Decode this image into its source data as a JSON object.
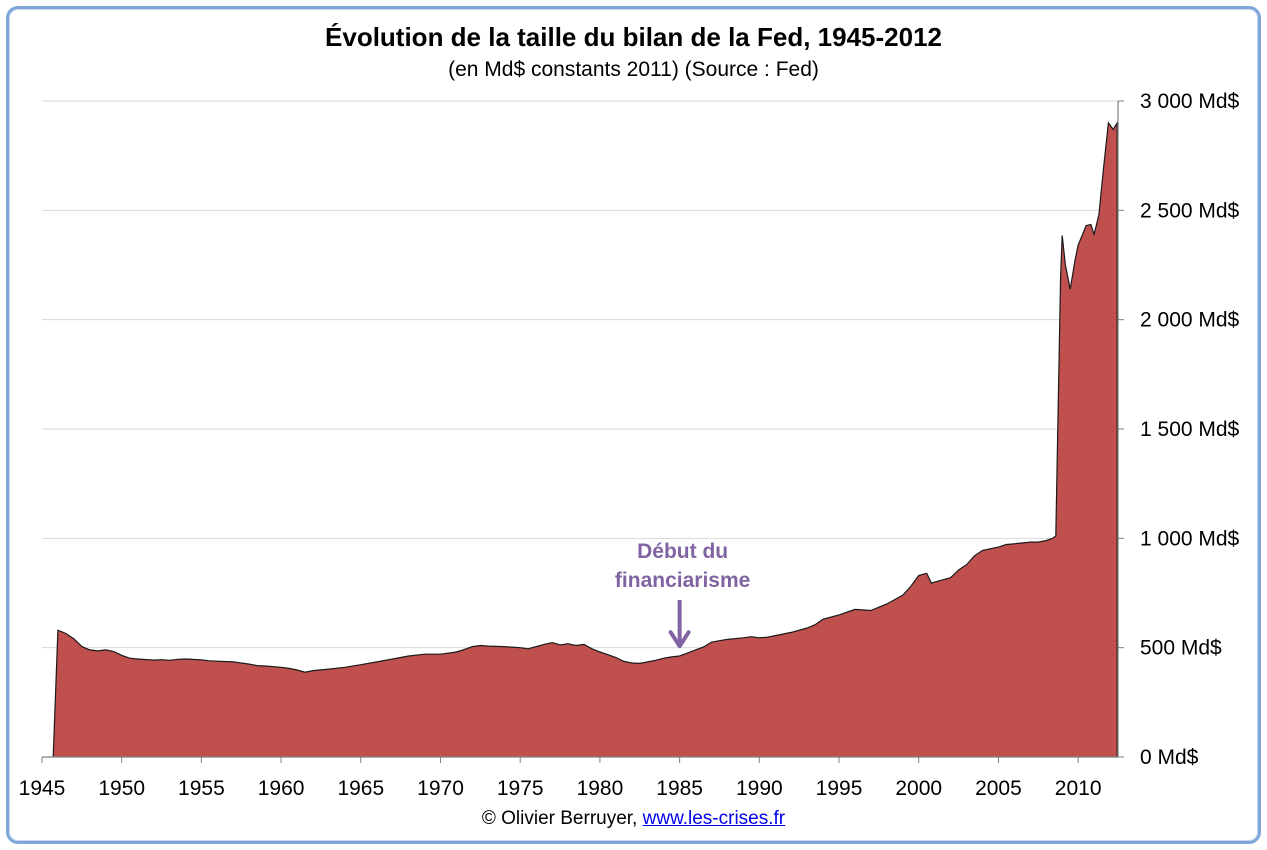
{
  "colors": {
    "area_fill": "#c0504d",
    "area_stroke": "#1a1a1a",
    "annotation": "#8064a2",
    "grid": "#d9d9d9",
    "frame": "#7ea6d9"
  },
  "chart_data": {
    "type": "area",
    "title": "Évolution de la taille du bilan de la Fed, 1945-2012",
    "subtitle": "(en Md$ constants 2011) (Source : Fed)",
    "xlabel": "",
    "ylabel": "",
    "xlim": [
      1945,
      2012.5
    ],
    "ylim": [
      0,
      3000
    ],
    "grid": true,
    "y_axis_position": "right",
    "x_ticks": [
      1945,
      1950,
      1955,
      1960,
      1965,
      1970,
      1975,
      1980,
      1985,
      1990,
      1995,
      2000,
      2005,
      2010
    ],
    "x_tick_labels": [
      "1945",
      "1950",
      "1955",
      "1960",
      "1965",
      "1970",
      "1975",
      "1980",
      "1985",
      "1990",
      "1995",
      "2000",
      "2005",
      "2010"
    ],
    "y_ticks": [
      0,
      500,
      1000,
      1500,
      2000,
      2500,
      3000
    ],
    "y_tick_labels": [
      "0 Md$",
      "500 Md$",
      "1 000 Md$",
      "1 500 Md$",
      "2 000 Md$",
      "2 500 Md$",
      "3 000 Md$"
    ],
    "series": [
      {
        "points": [
          [
            1945.7,
            0
          ],
          [
            1946.0,
            580
          ],
          [
            1946.5,
            565
          ],
          [
            1947.0,
            540
          ],
          [
            1947.5,
            505
          ],
          [
            1948.0,
            490
          ],
          [
            1948.5,
            485
          ],
          [
            1949.0,
            490
          ],
          [
            1949.5,
            482
          ],
          [
            1950.0,
            465
          ],
          [
            1950.5,
            452
          ],
          [
            1951.0,
            448
          ],
          [
            1952.0,
            443
          ],
          [
            1952.5,
            445
          ],
          [
            1953.0,
            442
          ],
          [
            1953.5,
            447
          ],
          [
            1954.0,
            448
          ],
          [
            1955.0,
            444
          ],
          [
            1955.5,
            440
          ],
          [
            1956.0,
            438
          ],
          [
            1957.0,
            435
          ],
          [
            1958.0,
            425
          ],
          [
            1958.5,
            418
          ],
          [
            1959.0,
            416
          ],
          [
            1960.0,
            410
          ],
          [
            1960.5,
            405
          ],
          [
            1961.0,
            398
          ],
          [
            1961.5,
            388
          ],
          [
            1962.0,
            395
          ],
          [
            1963.0,
            402
          ],
          [
            1964.0,
            410
          ],
          [
            1965.0,
            422
          ],
          [
            1966.0,
            435
          ],
          [
            1967.0,
            448
          ],
          [
            1968.0,
            462
          ],
          [
            1969.0,
            470
          ],
          [
            1970.0,
            470
          ],
          [
            1971.0,
            480
          ],
          [
            1971.5,
            492
          ],
          [
            1972.0,
            505
          ],
          [
            1972.5,
            510
          ],
          [
            1973.0,
            507
          ],
          [
            1974.0,
            505
          ],
          [
            1975.0,
            500
          ],
          [
            1975.5,
            495
          ],
          [
            1976.0,
            505
          ],
          [
            1976.5,
            515
          ],
          [
            1977.0,
            523
          ],
          [
            1977.5,
            512
          ],
          [
            1978.0,
            518
          ],
          [
            1978.5,
            510
          ],
          [
            1979.0,
            515
          ],
          [
            1979.5,
            495
          ],
          [
            1980.0,
            480
          ],
          [
            1980.5,
            468
          ],
          [
            1981.0,
            455
          ],
          [
            1981.5,
            437
          ],
          [
            1982.0,
            430
          ],
          [
            1982.5,
            428
          ],
          [
            1983.0,
            435
          ],
          [
            1983.5,
            442
          ],
          [
            1984.0,
            452
          ],
          [
            1984.5,
            458
          ],
          [
            1985.0,
            462
          ],
          [
            1985.5,
            475
          ],
          [
            1986.0,
            490
          ],
          [
            1986.5,
            503
          ],
          [
            1987.0,
            525
          ],
          [
            1987.5,
            532
          ],
          [
            1988.0,
            538
          ],
          [
            1989.0,
            545
          ],
          [
            1989.5,
            550
          ],
          [
            1990.0,
            545
          ],
          [
            1990.5,
            548
          ],
          [
            1991.0,
            555
          ],
          [
            1992.0,
            570
          ],
          [
            1993.0,
            590
          ],
          [
            1993.5,
            605
          ],
          [
            1994.0,
            630
          ],
          [
            1995.0,
            650
          ],
          [
            1996.0,
            675
          ],
          [
            1997.0,
            670
          ],
          [
            1997.5,
            685
          ],
          [
            1998.0,
            700
          ],
          [
            1999.0,
            740
          ],
          [
            1999.5,
            780
          ],
          [
            2000.0,
            830
          ],
          [
            2000.5,
            840
          ],
          [
            2000.8,
            795
          ],
          [
            2001.0,
            800
          ],
          [
            2002.0,
            820
          ],
          [
            2002.5,
            855
          ],
          [
            2003.0,
            880
          ],
          [
            2003.5,
            920
          ],
          [
            2004.0,
            945
          ],
          [
            2005.0,
            960
          ],
          [
            2005.5,
            972
          ],
          [
            2006.0,
            975
          ],
          [
            2007.0,
            983
          ],
          [
            2007.5,
            983
          ],
          [
            2008.0,
            990
          ],
          [
            2008.4,
            1000
          ],
          [
            2008.6,
            1010
          ],
          [
            2008.9,
            2200
          ],
          [
            2009.0,
            2385
          ],
          [
            2009.2,
            2250
          ],
          [
            2009.5,
            2140
          ],
          [
            2009.8,
            2270
          ],
          [
            2010.0,
            2340
          ],
          [
            2010.5,
            2430
          ],
          [
            2010.8,
            2435
          ],
          [
            2011.0,
            2390
          ],
          [
            2011.3,
            2480
          ],
          [
            2011.6,
            2700
          ],
          [
            2011.9,
            2900
          ],
          [
            2012.2,
            2870
          ],
          [
            2012.45,
            2900
          ],
          [
            2012.45,
            0
          ]
        ]
      }
    ],
    "annotations": [
      {
        "line1": "Début du",
        "line2": "financiarisme",
        "x": 1985,
        "y": 470
      }
    ]
  },
  "footer": {
    "credit": "© Olivier Berruyer,",
    "link_text": "www.les-crises.fr"
  }
}
